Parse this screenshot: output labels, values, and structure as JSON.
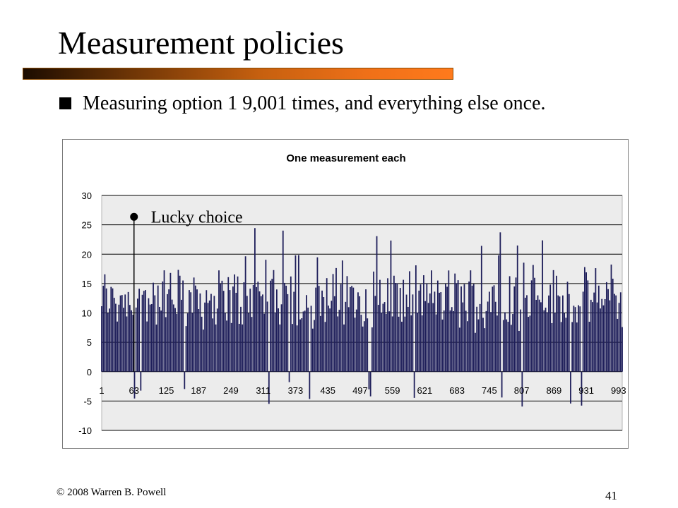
{
  "slide": {
    "title": "Measurement policies",
    "bullet": "Measuring option 1 9,001 times, and everything else once.",
    "footer": "© 2008 Warren B. Powell",
    "page_number": "41"
  },
  "chart_data": {
    "type": "bar",
    "title": "One measurement each",
    "xlabel": "",
    "ylabel": "",
    "ylim": [
      -10,
      30
    ],
    "y_ticks": [
      -10,
      -5,
      0,
      5,
      10,
      15,
      20,
      25,
      30
    ],
    "x_tick_labels": [
      "1",
      "63",
      "125",
      "187",
      "249",
      "311",
      "373",
      "435",
      "497",
      "559",
      "621",
      "683",
      "745",
      "807",
      "869",
      "931",
      "993"
    ],
    "x_range": [
      1,
      1000
    ],
    "grid": "horizontal",
    "bar_fill": "#1e1e5a",
    "plot_background": "#ececec",
    "approx_value_range": [
      -6,
      24.5
    ],
    "typical_value_range": [
      8,
      17
    ],
    "selected_point": {
      "x": 63,
      "y": 26
    },
    "annotations": [
      {
        "text": "Lucky choice",
        "x": 63,
        "y": 26
      }
    ]
  }
}
